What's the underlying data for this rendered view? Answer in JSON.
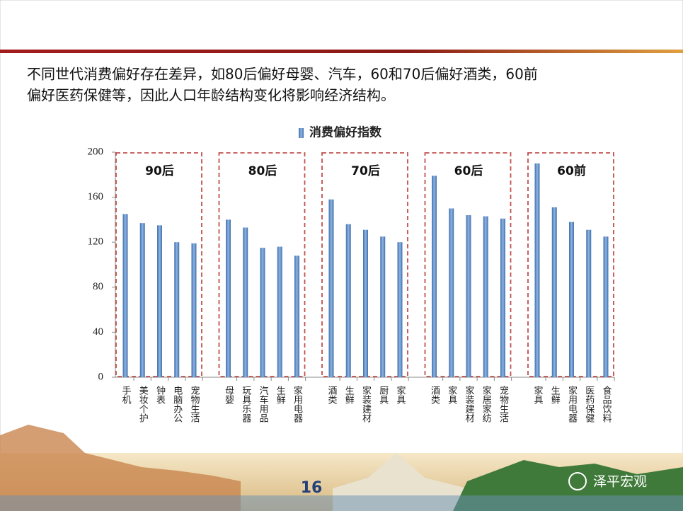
{
  "slide": {
    "text": [
      "不同世代消费偏好存在差异，如80后偏好母婴、汽车，60和70后偏好酒类，60前",
      "偏好医药保健等，因此人口年龄结构变化将影响经济结构。"
    ],
    "page_number": "16",
    "watermark": "泽平宏观"
  },
  "chart_data": {
    "type": "bar",
    "categories": [
      "手机",
      "美妆个护",
      "钟表",
      "电脑办公",
      "宠物生活",
      "母婴",
      "玩具乐器",
      "汽车用品",
      "生鲜",
      "家用电器",
      "酒类",
      "生鲜",
      "家装建材",
      "厨具",
      "家具",
      "酒类",
      "家具",
      "家装建材",
      "家居家纺",
      "宠物生活",
      "家具",
      "生鲜",
      "家用电器",
      "医药保健",
      "食品饮料"
    ],
    "group_labels": [
      "90后",
      "80后",
      "70后",
      "60后",
      "60前"
    ],
    "series": [
      {
        "name": "消费偏好指数",
        "color": "#4f81bd",
        "values": [
          145,
          137,
          135,
          120,
          119,
          140,
          133,
          115,
          116,
          108,
          158,
          136,
          131,
          125,
          120,
          179,
          150,
          144,
          143,
          141,
          190,
          151,
          138,
          131,
          125
        ]
      }
    ],
    "ylim": [
      0,
      200
    ],
    "yticks": [
      0,
      40,
      80,
      120,
      160,
      200
    ]
  }
}
